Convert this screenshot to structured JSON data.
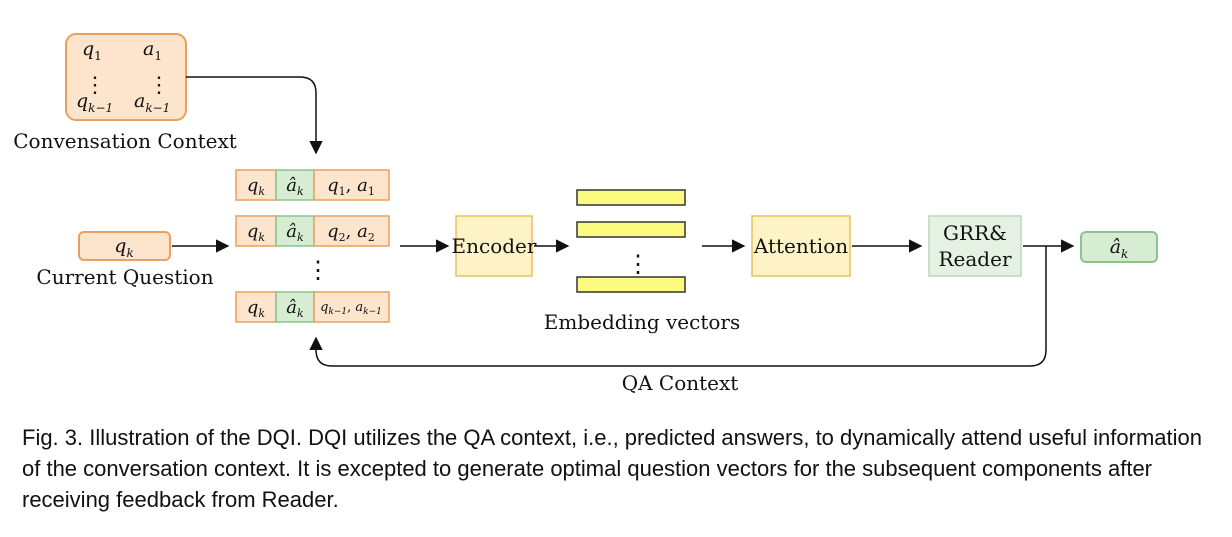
{
  "colors": {
    "orange_fill": "#fde4cc",
    "orange_stroke": "#e8a15c",
    "green_fill": "#d6ecd3",
    "green_stroke": "#8bc48a",
    "yellow_fill": "#fef3c7",
    "yellow_stroke": "#e7c25a",
    "bar_fill": "#fbfb7f",
    "bar_stroke": "#333333",
    "light_green_fill": "#e4f1e3",
    "light_green_stroke": "#b9d9b6"
  },
  "context_matrix": {
    "q1": "q",
    "q1_sub": "1",
    "a1": "a",
    "a1_sub": "1",
    "qk1": "q",
    "qk1_sub": "k−1",
    "ak1": "a",
    "ak1_sub": "k−1",
    "dots": "⋮"
  },
  "labels": {
    "conversation_context": "Convensation Context",
    "current_question": "Current Question",
    "embedding_vectors": "Embedding vectors",
    "qa_context": "QA Context"
  },
  "current_question": {
    "sym": "q",
    "sub": "k"
  },
  "rows": [
    {
      "q": "q",
      "q_sub": "k",
      "a": "â",
      "a_sub": "k",
      "pair": "q",
      "pair_sub": "1",
      "pair2": "a",
      "pair2_sub": "1"
    },
    {
      "q": "q",
      "q_sub": "k",
      "a": "â",
      "a_sub": "k",
      "pair": "q",
      "pair_sub": "2",
      "pair2": "a",
      "pair2_sub": "2"
    },
    {
      "q": "q",
      "q_sub": "k",
      "a": "â",
      "a_sub": "k",
      "pair": "q",
      "pair_sub": "k−1",
      "pair2": "a",
      "pair2_sub": "k−1"
    }
  ],
  "rows_dots": "⋮",
  "encoder": {
    "label": "Encoder"
  },
  "bars_dots": "⋮",
  "attention": {
    "label": "Attention"
  },
  "reader": {
    "line1": "GRR&",
    "line2": "Reader"
  },
  "output": {
    "sym": "â",
    "sub": "k"
  },
  "caption": "Fig. 3. Illustration of the DQI. DQI utilizes the QA context, i.e., predicted answers, to dynamically attend useful information of the conversation context. It is excepted to generate optimal question vectors for the subsequent components after receiving feedback from Reader."
}
